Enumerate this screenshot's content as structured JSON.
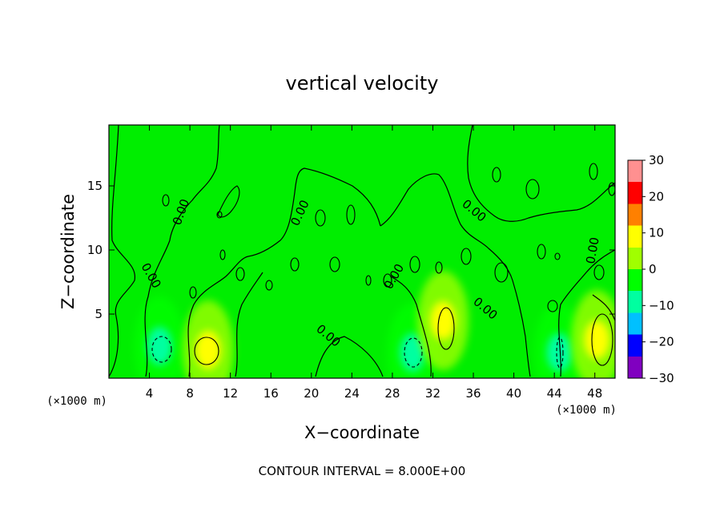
{
  "chart_data": {
    "type": "heatmap",
    "title": "vertical velocity",
    "xlabel": "X−coordinate",
    "ylabel": "Z−coordinate",
    "x_unit": "(×1000 m)",
    "x_ticks": [
      "4",
      "8",
      "12",
      "16",
      "20",
      "24",
      "28",
      "32",
      "36",
      "40",
      "44",
      "48"
    ],
    "y_ticks": [
      "5",
      "10",
      "15"
    ],
    "xlim": [
      0,
      50
    ],
    "ylim": [
      0,
      19.75
    ],
    "colorbar": {
      "ticks": [
        "30",
        "20",
        "10",
        "0",
        "−10",
        "−20",
        "−30"
      ],
      "range": [
        -30,
        30
      ],
      "colors": [
        "#8000c0",
        "#0000ff",
        "#00c0ff",
        "#00ffa0",
        "#00ff00",
        "#a0ff00",
        "#ffff00",
        "#ff8000",
        "#ff0000",
        "#ff9090"
      ]
    },
    "background_value": 0,
    "contour_label": "0.00",
    "contour_interval_text": "CONTOUR INTERVAL = 8.000E+00",
    "features": [
      {
        "x": 5,
        "z": 2.5,
        "value": -10,
        "kind": "min"
      },
      {
        "x": 9.8,
        "z": 2.2,
        "value": 8,
        "kind": "max"
      },
      {
        "x": 30,
        "z": 2.0,
        "value": -9,
        "kind": "min"
      },
      {
        "x": 33,
        "z": 4.5,
        "value": 9,
        "kind": "max"
      },
      {
        "x": 44.5,
        "z": 2.0,
        "value": -7,
        "kind": "min"
      },
      {
        "x": 48.2,
        "z": 3.0,
        "value": 10,
        "kind": "max"
      }
    ]
  }
}
